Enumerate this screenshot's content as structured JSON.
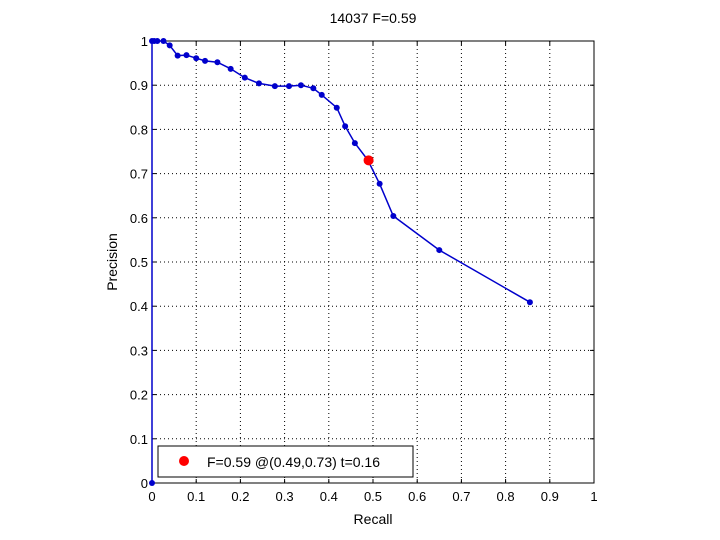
{
  "chart_data": {
    "type": "line",
    "title": "14037 F=0.59",
    "xlabel": "Recall",
    "ylabel": "Precision",
    "xlim": [
      0,
      1
    ],
    "ylim": [
      0,
      1
    ],
    "x_ticks": [
      "0",
      "0.1",
      "0.2",
      "0.3",
      "0.4",
      "0.5",
      "0.6",
      "0.7",
      "0.8",
      "0.9",
      "1"
    ],
    "y_ticks": [
      "0",
      "0.1",
      "0.2",
      "0.3",
      "0.4",
      "0.5",
      "0.6",
      "0.7",
      "0.8",
      "0.9",
      "1"
    ],
    "grid": true,
    "grid_style": "dotted",
    "legend_position": "bottom-left",
    "series": [
      {
        "color": "#0000cc",
        "marker": "dot",
        "points": [
          [
            0.0,
            0.0
          ],
          [
            0.0,
            1.0
          ],
          [
            0.005,
            1.0
          ],
          [
            0.012,
            1.0
          ],
          [
            0.026,
            1.0
          ],
          [
            0.04,
            0.99
          ],
          [
            0.058,
            0.967
          ],
          [
            0.078,
            0.968
          ],
          [
            0.1,
            0.961
          ],
          [
            0.12,
            0.955
          ],
          [
            0.148,
            0.952
          ],
          [
            0.178,
            0.937
          ],
          [
            0.21,
            0.917
          ],
          [
            0.242,
            0.904
          ],
          [
            0.278,
            0.898
          ],
          [
            0.31,
            0.898
          ],
          [
            0.337,
            0.9
          ],
          [
            0.365,
            0.893
          ],
          [
            0.384,
            0.878
          ],
          [
            0.418,
            0.849
          ],
          [
            0.437,
            0.807
          ],
          [
            0.459,
            0.769
          ],
          [
            0.488,
            0.731
          ],
          [
            0.515,
            0.677
          ],
          [
            0.546,
            0.604
          ],
          [
            0.65,
            0.527
          ],
          [
            0.855,
            0.409
          ]
        ]
      }
    ],
    "highlight": {
      "x": 0.49,
      "y": 0.73,
      "color": "#ff0000",
      "label": "F=0.59 @(0.49,0.73) t=0.16"
    }
  }
}
